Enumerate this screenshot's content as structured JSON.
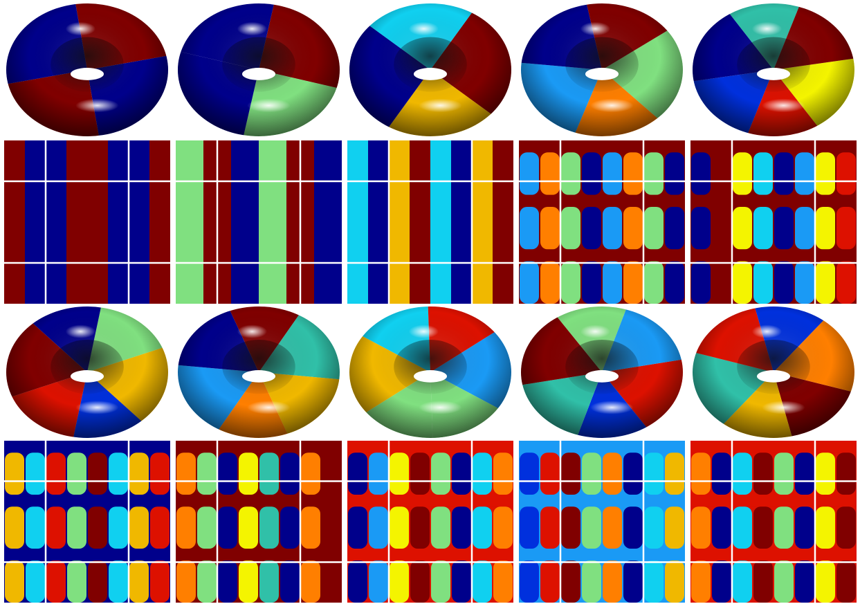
{
  "palette": {
    "navy": "#00008b",
    "darkred": "#800000",
    "red": "#dd1100",
    "orange": "#ff7f00",
    "gold": "#f0b800",
    "yellow": "#f4f400",
    "lightgreen": "#80e080",
    "cyan": "#10d0f0",
    "lightblue": "#1a9af5",
    "blue": "#0030dd",
    "teal": "#30c0a8",
    "white": "#ffffff"
  },
  "rows": [
    {
      "kind": "torus",
      "cells": [
        {
          "regions": [
            "darkred",
            "navy",
            "darkred",
            "navy"
          ]
        },
        {
          "regions": [
            "darkred",
            "lightgreen",
            "navy",
            "navy"
          ]
        },
        {
          "regions": [
            "darkred",
            "gold",
            "navy",
            "cyan"
          ]
        },
        {
          "regions": [
            "lightgreen",
            "orange",
            "lightblue",
            "navy",
            "darkred"
          ]
        },
        {
          "regions": [
            "yellow",
            "red",
            "blue",
            "navy",
            "teal",
            "darkred"
          ]
        }
      ]
    },
    {
      "kind": "pattern",
      "cells": [
        {
          "orientation": "vertical",
          "bands": [
            "darkred",
            "navy",
            "navy",
            "darkred",
            "darkred",
            "navy",
            "navy",
            "darkred"
          ]
        },
        {
          "orientation": "vertical",
          "bands": [
            "lightgreen",
            "darkred",
            "navy",
            "lightgreen",
            "darkred",
            "navy"
          ]
        },
        {
          "orientation": "vertical",
          "bands": [
            "cyan",
            "navy",
            "gold",
            "darkred",
            "cyan",
            "navy",
            "gold",
            "darkred"
          ]
        },
        {
          "orientation": "grid",
          "bands": [
            "lightblue",
            "orange",
            "lightgreen",
            "navy",
            "lightblue",
            "orange",
            "lightgreen",
            "navy"
          ],
          "stripe": "darkred"
        },
        {
          "orientation": "grid",
          "bands": [
            "navy",
            "darkred",
            "yellow",
            "cyan",
            "navy",
            "lightblue",
            "yellow",
            "red"
          ],
          "stripe": "darkred"
        }
      ]
    },
    {
      "kind": "torus",
      "cells": [
        {
          "regions": [
            "lightgreen",
            "gold",
            "blue",
            "red",
            "darkred",
            "navy"
          ]
        },
        {
          "regions": [
            "teal",
            "gold",
            "orange",
            "lightblue",
            "navy",
            "darkred"
          ]
        },
        {
          "regions": [
            "lightblue",
            "lightgreen",
            "lightgreen",
            "gold",
            "cyan",
            "red"
          ]
        },
        {
          "regions": [
            "red",
            "blue",
            "teal",
            "darkred",
            "lightgreen",
            "lightblue"
          ]
        },
        {
          "regions": [
            "darkred",
            "gold",
            "teal",
            "red",
            "blue",
            "orange"
          ]
        }
      ]
    },
    {
      "kind": "pattern",
      "cells": [
        {
          "orientation": "grid",
          "bands": [
            "gold",
            "cyan",
            "red",
            "lightgreen",
            "darkred",
            "cyan",
            "gold",
            "red"
          ],
          "stripe": "navy"
        },
        {
          "orientation": "grid",
          "bands": [
            "orange",
            "lightgreen",
            "navy",
            "yellow",
            "teal",
            "navy",
            "orange",
            "darkred"
          ],
          "stripe": "darkred"
        },
        {
          "orientation": "grid",
          "bands": [
            "navy",
            "lightblue",
            "yellow",
            "darkred",
            "lightgreen",
            "navy",
            "cyan",
            "orange"
          ],
          "stripe": "red"
        },
        {
          "orientation": "grid",
          "bands": [
            "blue",
            "red",
            "darkred",
            "lightgreen",
            "orange",
            "navy",
            "cyan",
            "gold"
          ],
          "stripe": "lightblue"
        },
        {
          "orientation": "grid",
          "bands": [
            "orange",
            "navy",
            "cyan",
            "darkred",
            "lightgreen",
            "navy",
            "yellow",
            "darkred"
          ],
          "stripe": "red"
        }
      ]
    }
  ]
}
